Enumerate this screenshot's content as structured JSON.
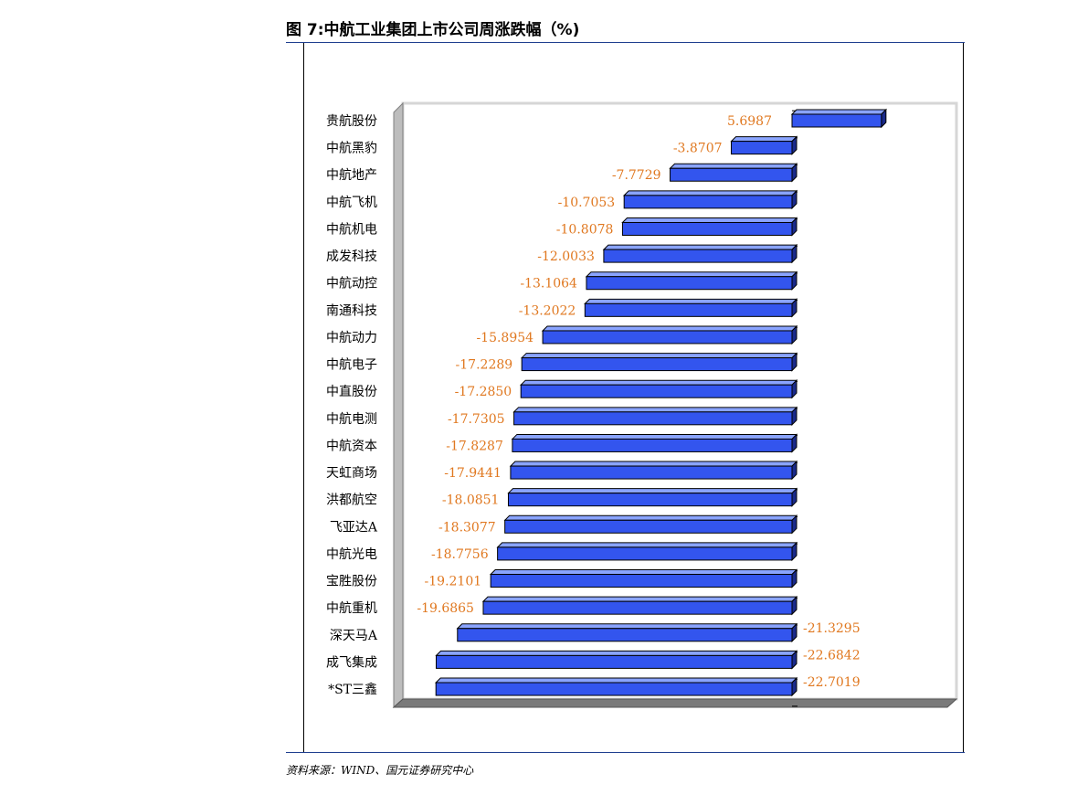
{
  "title": "图 7:中航工业集团上市公司周涨跌幅（%)",
  "source": "资料来源：WIND、国元证券研究中心",
  "colors": {
    "bar_front": "#3355ee",
    "bar_top": "#8aa4ff",
    "bar_side": "#1a2a8a",
    "value_label": "#e07820",
    "plot_back": "#d6d6d6",
    "plot_floor": "#7a7a7a"
  },
  "chart_data": {
    "type": "bar",
    "orientation": "horizontal",
    "style": "3d",
    "title": "",
    "xlabel": "",
    "ylabel": "",
    "categories": [
      "贵航股份",
      "中航黑豹",
      "中航地产",
      "中航飞机",
      "中航机电",
      "成发科技",
      "中航动控",
      "南通科技",
      "中航动力",
      "中航电子",
      "中直股份",
      "中航电测",
      "中航资本",
      "天虹商场",
      "洪都航空",
      "飞亚达A",
      "中航光电",
      "宝胜股份",
      "中航重机",
      "深天马A",
      "成飞集成",
      "*ST三鑫"
    ],
    "values": [
      5.6987,
      -3.8707,
      -7.7729,
      -10.7053,
      -10.8078,
      -12.0033,
      -13.1064,
      -13.2022,
      -15.8954,
      -17.2289,
      -17.285,
      -17.7305,
      -17.8287,
      -17.9441,
      -18.0851,
      -18.3077,
      -18.7756,
      -19.2101,
      -19.6865,
      -21.3295,
      -22.6842,
      -22.7019
    ],
    "value_labels": [
      "5.6987",
      "-3.8707",
      "-7.7729",
      "-10.7053",
      "-10.8078",
      "-12.0033",
      "-13.1064",
      "-13.2022",
      "-15.8954",
      "-17.2289",
      "-17.2850",
      "-17.7305",
      "-17.8287",
      "-17.9441",
      "-18.0851",
      "-18.3077",
      "-18.7756",
      "-19.2101",
      "-19.6865",
      "-21.3295",
      "-22.6842",
      "-22.7019"
    ],
    "xlim": [
      -25,
      10
    ],
    "grid": false,
    "legend": "none"
  }
}
